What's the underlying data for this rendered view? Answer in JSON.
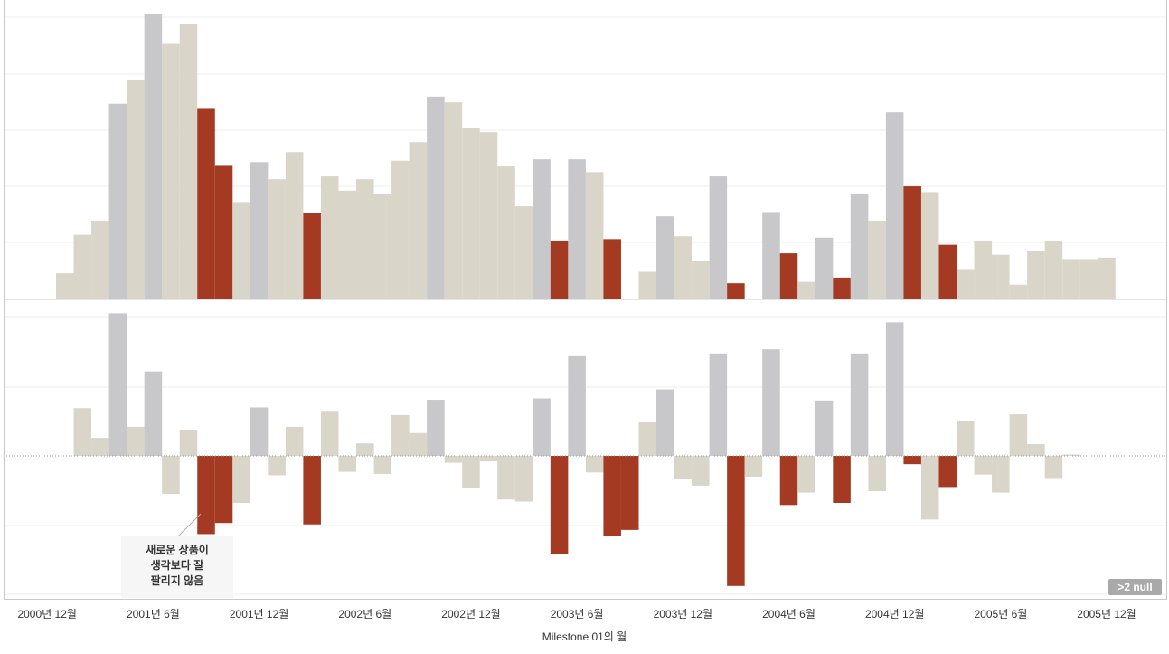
{
  "chart_data": [
    {
      "type": "bar",
      "panel": "top",
      "ylim": [
        0,
        100
      ],
      "grid": true,
      "categories": [
        "2001-01",
        "2001-02",
        "2001-03",
        "2001-04",
        "2001-05",
        "2001-06",
        "2001-07",
        "2001-08",
        "2001-09",
        "2001-10",
        "2001-11",
        "2001-12",
        "2002-01",
        "2002-02",
        "2002-03",
        "2002-04",
        "2002-05",
        "2002-06",
        "2002-07",
        "2002-08",
        "2002-09",
        "2002-10",
        "2002-11",
        "2002-12",
        "2003-01",
        "2003-02",
        "2003-03",
        "2003-04",
        "2003-05",
        "2003-06",
        "2003-07",
        "2003-08",
        "2003-09",
        "2003-10",
        "2003-11",
        "2003-12",
        "2004-01",
        "2004-02",
        "2004-03",
        "2004-04",
        "2004-05",
        "2004-06",
        "2004-07",
        "2004-08",
        "2004-09",
        "2004-10",
        "2004-11",
        "2004-12",
        "2005-01",
        "2005-02",
        "2005-03",
        "2005-04",
        "2005-05",
        "2005-06",
        "2005-07",
        "2005-08",
        "2005-09",
        "2005-10",
        "2005-11",
        "2005-12"
      ],
      "values": [
        9,
        22.5,
        27.5,
        68.5,
        77,
        100,
        89.5,
        96.5,
        67,
        47,
        34,
        48,
        42,
        51.5,
        30,
        43,
        38,
        42,
        37,
        48.5,
        55,
        71,
        69,
        60,
        58.5,
        46.5,
        32.5,
        49,
        20.5,
        49,
        44.5,
        21,
        0,
        9.5,
        29,
        22,
        13.5,
        43,
        5.5,
        0,
        30.5,
        16,
        6,
        21.5,
        7.5,
        37,
        27.5,
        65.5,
        39.5,
        37.5,
        19,
        10.5,
        20.5,
        15.5,
        5,
        17,
        20.5,
        14,
        14,
        14.5
      ],
      "status": [
        "b",
        "b",
        "b",
        "g",
        "b",
        "g",
        "b",
        "b",
        "r",
        "r",
        "b",
        "g",
        "b",
        "b",
        "r",
        "b",
        "b",
        "b",
        "b",
        "b",
        "b",
        "g",
        "b",
        "b",
        "b",
        "b",
        "b",
        "g",
        "r",
        "g",
        "b",
        "r",
        "n",
        "b",
        "g",
        "b",
        "b",
        "g",
        "r",
        "n",
        "g",
        "r",
        "b",
        "g",
        "r",
        "g",
        "b",
        "g",
        "r",
        "b",
        "r",
        "b",
        "b",
        "b",
        "b",
        "b",
        "b",
        "b",
        "b",
        "b"
      ]
    },
    {
      "type": "bar",
      "panel": "bottom",
      "ylim": [
        -100,
        100
      ],
      "baseline": 0,
      "grid": true,
      "categories": [
        "2001-01",
        "2001-02",
        "2001-03",
        "2001-04",
        "2001-05",
        "2001-06",
        "2001-07",
        "2001-08",
        "2001-09",
        "2001-10",
        "2001-11",
        "2001-12",
        "2002-01",
        "2002-02",
        "2002-03",
        "2002-04",
        "2002-05",
        "2002-06",
        "2002-07",
        "2002-08",
        "2002-09",
        "2002-10",
        "2002-11",
        "2002-12",
        "2003-01",
        "2003-02",
        "2003-03",
        "2003-04",
        "2003-05",
        "2003-06",
        "2003-07",
        "2003-08",
        "2003-09",
        "2003-10",
        "2003-11",
        "2003-12",
        "2004-01",
        "2004-02",
        "2004-03",
        "2004-04",
        "2004-05",
        "2004-06",
        "2004-07",
        "2004-08",
        "2004-09",
        "2004-10",
        "2004-11",
        "2004-12",
        "2005-01",
        "2005-02",
        "2005-03",
        "2005-04",
        "2005-05",
        "2005-06",
        "2005-07",
        "2005-08",
        "2005-09",
        "2005-10",
        "2005-11",
        "2005-12"
      ],
      "values": [
        0,
        34.5,
        13,
        103,
        21,
        61,
        -27.5,
        19,
        -56.5,
        -48.5,
        -34,
        35,
        -14,
        21,
        -49.5,
        32.5,
        -11.5,
        9,
        -13,
        29.5,
        16.5,
        40.5,
        -5,
        -23.5,
        -4,
        -31.5,
        -33,
        41.5,
        -71,
        72,
        -12,
        -58,
        -53.5,
        24.5,
        48,
        -16.5,
        -21.5,
        74,
        -94,
        -15,
        77,
        -35.5,
        -26.5,
        40,
        -34,
        74,
        -25.5,
        96.5,
        -6,
        -46,
        -22.5,
        25.5,
        -13.5,
        -26.5,
        30,
        8.5,
        -16,
        1,
        0,
        0
      ],
      "status": [
        "b",
        "b",
        "b",
        "g",
        "b",
        "g",
        "b",
        "b",
        "r",
        "r",
        "b",
        "g",
        "b",
        "b",
        "r",
        "b",
        "b",
        "b",
        "b",
        "b",
        "b",
        "g",
        "b",
        "b",
        "b",
        "b",
        "b",
        "g",
        "r",
        "g",
        "b",
        "r",
        "r",
        "b",
        "g",
        "b",
        "b",
        "g",
        "r",
        "b",
        "g",
        "r",
        "b",
        "g",
        "r",
        "g",
        "b",
        "g",
        "r",
        "b",
        "r",
        "b",
        "b",
        "b",
        "b",
        "b",
        "b",
        "b",
        "b",
        "b"
      ]
    }
  ],
  "x_ticks": [
    {
      "index": -1,
      "label": "2000년 12월"
    },
    {
      "index": 5,
      "label": "2001년 6월"
    },
    {
      "index": 11,
      "label": "2001년 12월"
    },
    {
      "index": 17,
      "label": "2002년 6월"
    },
    {
      "index": 23,
      "label": "2002년 12월"
    },
    {
      "index": 29,
      "label": "2003년 6월"
    },
    {
      "index": 35,
      "label": "2003년 12월"
    },
    {
      "index": 41,
      "label": "2004년 6월"
    },
    {
      "index": 47,
      "label": "2004년 12월"
    },
    {
      "index": 53,
      "label": "2005년 6월"
    },
    {
      "index": 59,
      "label": "2005년 12월"
    }
  ],
  "xlabel": "Milestone 01의 월",
  "annotation": {
    "line1": "새로운 상품이",
    "line2": "생각보다 잘",
    "line3": "팔리지 않음"
  },
  "null_badge": ">2 null",
  "colors": {
    "b": "#d9d5c9",
    "g": "#c8c8ca",
    "r": "#a33a21",
    "axis": "#c9c9c9",
    "grid": "#ececec",
    "text": "#333333"
  }
}
